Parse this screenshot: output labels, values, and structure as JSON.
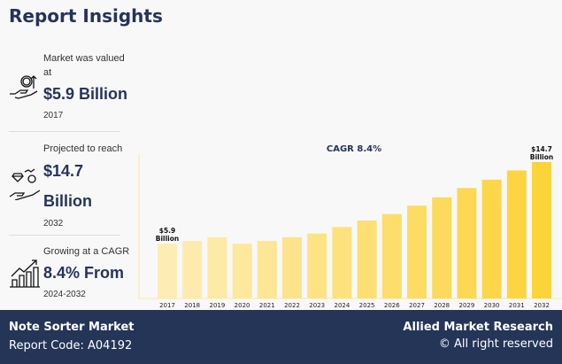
{
  "title": "Report Insights",
  "stats": [
    {
      "label": "Market was valued at",
      "value": "$5.9 Billion",
      "sub": "2017",
      "icon": "hand-money-growth-icon"
    },
    {
      "label": "Projected to reach",
      "value": "$14.7 Billion",
      "sub": "2032",
      "icon": "hand-diamond-coin-icon"
    },
    {
      "label": "Growing at a CAGR",
      "value": "8.4% From",
      "sub": "2024-2032",
      "icon": "bar-chart-growth-icon"
    }
  ],
  "footer": {
    "market": "Note Sorter Market",
    "code": "Report Code: A04192",
    "brand": "Allied Market Research",
    "copyright": "© All right reserved"
  },
  "chart_data": {
    "type": "bar",
    "title": "CAGR 8.4%",
    "categories": [
      "2017",
      "2018",
      "2019",
      "2020",
      "2021",
      "2022",
      "2023",
      "2024",
      "2025",
      "2026",
      "2027",
      "2028",
      "2029",
      "2030",
      "2031",
      "2032"
    ],
    "values": [
      5.9,
      6.2,
      6.6,
      5.9,
      6.2,
      6.6,
      7.0,
      7.7,
      8.4,
      9.1,
      10.0,
      10.9,
      11.9,
      12.8,
      13.8,
      14.7
    ],
    "annotations": [
      {
        "category": "2017",
        "text": [
          "$5.9",
          "Billion"
        ]
      },
      {
        "category": "2032",
        "text": [
          "$14.7",
          "Billion"
        ]
      }
    ],
    "colors": {
      "start": "#fdedb5",
      "end": "#fdd33a"
    },
    "grid": false
  }
}
